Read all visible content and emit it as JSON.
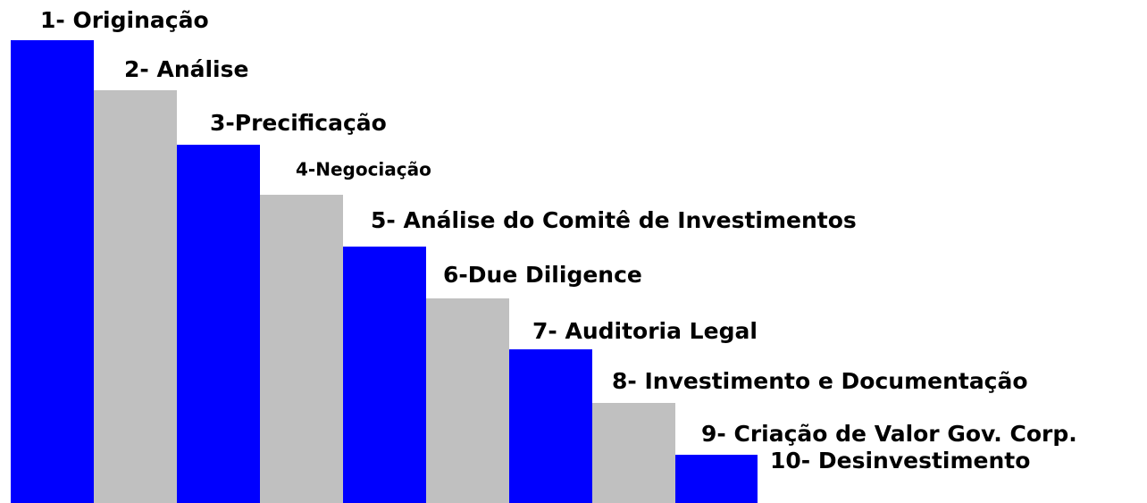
{
  "steps": [
    {
      "label": "1- Originação"
    },
    {
      "label": "2- Análise"
    },
    {
      "label": "3-Precificação"
    },
    {
      "label": "4-Negociação"
    },
    {
      "label": "5- Análise do Comitê de Investimentos"
    },
    {
      "label": "6-Due Diligence"
    },
    {
      "label": "7- Auditoria Legal"
    },
    {
      "label": "8- Investimento e Documentação"
    },
    {
      "label": "9- Criação de Valor Gov. Corp."
    },
    {
      "label": "10- Desinvestimento"
    }
  ]
}
